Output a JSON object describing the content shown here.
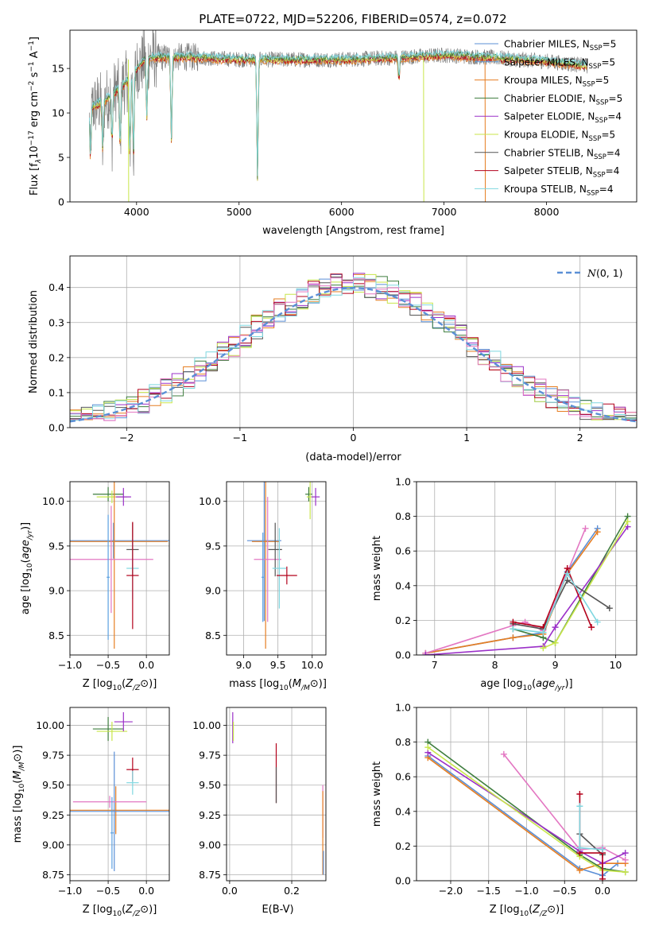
{
  "title": "PLATE=0722, MJD=52206, FIBERID=0574, z=0.072",
  "colors": {
    "chabrier_miles": "#5B8FD6",
    "salpeter_miles": "#5BA0E0",
    "kroupa_miles": "#E67E22",
    "chabrier_elodie": "#3E7D3E",
    "salpeter_elodie": "#9B30C8",
    "kroupa_elodie": "#C8E64A",
    "chabrier_stelib": "#555555",
    "salpeter_stelib": "#B3001B",
    "kroupa_stelib": "#7FD7E0",
    "pink": "#E377C2",
    "gaussian": "#5B8FD6",
    "data": "#808080"
  },
  "legend": [
    {
      "prefix": "Chabrier MILES, N",
      "n": "5",
      "key": "chabrier_miles"
    },
    {
      "prefix": "Salpeter MILES, N",
      "n": "5",
      "key": "salpeter_miles"
    },
    {
      "prefix": "Kroupa MILES, N",
      "n": "5",
      "key": "kroupa_miles"
    },
    {
      "prefix": "Chabrier ELODIE, N",
      "n": "5",
      "key": "chabrier_elodie"
    },
    {
      "prefix": "Salpeter ELODIE, N",
      "n": "4",
      "key": "salpeter_elodie"
    },
    {
      "prefix": "Kroupa ELODIE, N",
      "n": "5",
      "key": "kroupa_elodie"
    },
    {
      "prefix": "Chabrier STELIB, N",
      "n": "4",
      "key": "chabrier_stelib"
    },
    {
      "prefix": "Salpeter STELIB, N",
      "n": "4",
      "key": "salpeter_stelib"
    },
    {
      "prefix": "Kroupa STELIB, N",
      "n": "4",
      "key": "kroupa_stelib"
    }
  ],
  "legend_sub": "SSP",
  "legend_eq": "=",
  "chart_data": [
    {
      "id": "spectrum",
      "type": "line",
      "xlabel": "wavelength [Angstrom, rest frame]",
      "ylabel": "Flux [f",
      "xlim": [
        3350,
        8880
      ],
      "ylim": [
        0,
        19.3
      ],
      "xticks": [
        4000,
        5000,
        6000,
        7000,
        8000
      ],
      "yticks": [
        0,
        5,
        10,
        15
      ],
      "data_range": [
        3540,
        8400
      ],
      "continuum": [
        [
          3540,
          10.5
        ],
        [
          3700,
          11.5
        ],
        [
          3900,
          13.5
        ],
        [
          4000,
          15
        ],
        [
          4100,
          16.2
        ],
        [
          4500,
          16.3
        ],
        [
          5000,
          16.0
        ],
        [
          5500,
          16.0
        ],
        [
          6000,
          16.0
        ],
        [
          6500,
          16.2
        ],
        [
          7000,
          16.5
        ],
        [
          7500,
          16.2
        ],
        [
          8000,
          15.8
        ],
        [
          8400,
          15.3
        ]
      ],
      "dips": [
        [
          3550,
          4.5
        ],
        [
          3670,
          4.8
        ],
        [
          3760,
          6.0
        ],
        [
          3840,
          5.0
        ],
        [
          3935,
          4.0
        ],
        [
          3970,
          4.2
        ],
        [
          4100,
          8.5
        ],
        [
          4340,
          6.0
        ],
        [
          5180,
          1.2
        ],
        [
          6560,
          13.5
        ]
      ]
    },
    {
      "id": "residuals",
      "type": "area",
      "xlabel": "(data-model)/error",
      "ylabel": "Normed distribution",
      "xlim": [
        -2.5,
        2.5
      ],
      "ylim": [
        0,
        0.49
      ],
      "xticks": [
        -2,
        -1,
        0,
        1,
        2
      ],
      "yticks": [
        0.0,
        0.1,
        0.2,
        0.3,
        0.4
      ],
      "bin_width": 0.1,
      "legend_label": "(0, 1)",
      "legend_prefix": "N"
    },
    {
      "id": "age_vs_Z",
      "type": "scatter",
      "xlabel": "Z [log",
      "ylabel": "age  [log",
      "xlim": [
        -1.0,
        0.3
      ],
      "ylim": [
        8.28,
        10.22
      ],
      "xticks": [
        -1.0,
        -0.5,
        0.0
      ],
      "yticks": [
        8.5,
        9.0,
        9.5,
        10.0
      ],
      "points": [
        {
          "x": -0.5,
          "y": 10.08,
          "xerr": 0.2,
          "yerr": 0.08,
          "color": "chabrier_elodie"
        },
        {
          "x": -0.45,
          "y": 10.05,
          "xerr": 0.2,
          "yerr": 0.07,
          "color": "kroupa_elodie"
        },
        {
          "x": -0.3,
          "y": 10.05,
          "xerr": 0.1,
          "yerr": 0.1,
          "color": "salpeter_elodie"
        },
        {
          "x": -0.43,
          "y": 9.56,
          "xerr": 0.75,
          "yerr": 0.2,
          "color": "chabrier_miles"
        },
        {
          "x": -0.42,
          "y": 9.55,
          "xerr": 0.7,
          "yerr": 1.2,
          "color": "kroupa_miles"
        },
        {
          "x": -0.46,
          "y": 9.35,
          "xerr": 0.55,
          "yerr": 0.6,
          "color": "pink"
        },
        {
          "x": -0.18,
          "y": 9.46,
          "xerr": 0.08,
          "yerr": 0.3,
          "color": "chabrier_stelib"
        },
        {
          "x": -0.18,
          "y": 9.25,
          "xerr": 0.08,
          "yerr": 0.35,
          "color": "kroupa_stelib"
        },
        {
          "x": -0.18,
          "y": 9.17,
          "xerr": 0.08,
          "yerr": 0.6,
          "color": "salpeter_stelib"
        },
        {
          "x": -0.5,
          "y": 9.15,
          "xerr": 0.02,
          "yerr": 0.7,
          "color": "salpeter_miles"
        }
      ]
    },
    {
      "id": "age_vs_mass",
      "type": "scatter",
      "xlabel": "mass [log",
      "ylabel": "",
      "xlim": [
        8.75,
        10.2
      ],
      "ylim": [
        8.28,
        10.22
      ],
      "xticks": [
        9.0,
        9.5,
        10.0
      ],
      "yticks": [
        8.5,
        9.0,
        9.5,
        10.0
      ],
      "points": [
        {
          "x": 9.95,
          "y": 10.08,
          "xerr": 0.05,
          "yerr": 0.08,
          "color": "chabrier_elodie"
        },
        {
          "x": 9.97,
          "y": 10.05,
          "xerr": 0.05,
          "yerr": 0.25,
          "color": "kroupa_elodie"
        },
        {
          "x": 10.05,
          "y": 10.05,
          "xerr": 0.06,
          "yerr": 0.1,
          "color": "salpeter_elodie"
        },
        {
          "x": 9.3,
          "y": 9.56,
          "xerr": 0.25,
          "yerr": 0.9,
          "color": "chabrier_miles"
        },
        {
          "x": 9.32,
          "y": 9.55,
          "xerr": 0.2,
          "yerr": 1.2,
          "color": "kroupa_miles"
        },
        {
          "x": 9.35,
          "y": 9.35,
          "xerr": 0.2,
          "yerr": 0.7,
          "color": "pink"
        },
        {
          "x": 9.46,
          "y": 9.46,
          "xerr": 0.1,
          "yerr": 0.3,
          "color": "chabrier_stelib"
        },
        {
          "x": 9.52,
          "y": 9.25,
          "xerr": 0.1,
          "yerr": 0.45,
          "color": "kroupa_stelib"
        },
        {
          "x": 9.63,
          "y": 9.17,
          "xerr": 0.15,
          "yerr": 0.1,
          "color": "salpeter_stelib"
        },
        {
          "x": 9.28,
          "y": 9.15,
          "xerr": 0.02,
          "yerr": 0.5,
          "color": "salpeter_miles"
        }
      ]
    },
    {
      "id": "weight_vs_age",
      "type": "line",
      "xlabel": "age  [log",
      "ylabel": "mass weight",
      "xlim": [
        6.7,
        10.35
      ],
      "ylim": [
        0,
        1.0
      ],
      "xticks": [
        7,
        8,
        9,
        10
      ],
      "yticks": [
        0.0,
        0.2,
        0.4,
        0.6,
        0.8,
        1.0
      ],
      "series": [
        {
          "color": "chabrier_miles",
          "x": [
            6.85,
            8.3,
            8.8,
            9.2,
            9.7
          ],
          "y": [
            0.01,
            0.1,
            0.13,
            0.48,
            0.73
          ]
        },
        {
          "color": "kroupa_miles",
          "x": [
            6.85,
            8.3,
            8.8,
            9.2,
            9.7
          ],
          "y": [
            0.01,
            0.1,
            0.12,
            0.47,
            0.71
          ]
        },
        {
          "color": "pink",
          "x": [
            6.85,
            8.3,
            8.5,
            8.8,
            9.5
          ],
          "y": [
            0.01,
            0.17,
            0.19,
            0.14,
            0.73
          ]
        },
        {
          "color": "chabrier_elodie",
          "x": [
            8.3,
            8.8,
            9.0,
            10.2
          ],
          "y": [
            0.15,
            0.1,
            0.07,
            0.8
          ]
        },
        {
          "color": "salpeter_elodie",
          "x": [
            6.85,
            8.8,
            9.0,
            10.2
          ],
          "y": [
            0.0,
            0.05,
            0.16,
            0.74
          ]
        },
        {
          "color": "kroupa_elodie",
          "x": [
            8.8,
            9.0,
            10.2
          ],
          "y": [
            0.04,
            0.07,
            0.77
          ]
        },
        {
          "color": "chabrier_stelib",
          "x": [
            8.3,
            8.8,
            9.2,
            9.9
          ],
          "y": [
            0.18,
            0.15,
            0.43,
            0.27
          ]
        },
        {
          "color": "salpeter_stelib",
          "x": [
            8.3,
            8.8,
            9.2,
            9.6
          ],
          "y": [
            0.19,
            0.16,
            0.5,
            0.16
          ]
        },
        {
          "color": "kroupa_stelib",
          "x": [
            8.3,
            8.8,
            9.2,
            9.7
          ],
          "y": [
            0.15,
            0.13,
            0.47,
            0.19
          ]
        }
      ]
    },
    {
      "id": "mass_vs_Z",
      "type": "scatter",
      "xlabel": "Z [log",
      "ylabel": "mass [log",
      "xlim": [
        -1.0,
        0.3
      ],
      "ylim": [
        8.7,
        10.15
      ],
      "xticks": [
        -1.0,
        -0.5,
        0.0
      ],
      "yticks": [
        8.75,
        9.0,
        9.25,
        9.5,
        9.75,
        10.0
      ],
      "points": [
        {
          "x": -0.5,
          "y": 9.97,
          "xerr": 0.2,
          "yerr": 0.1,
          "color": "chabrier_elodie"
        },
        {
          "x": -0.45,
          "y": 9.95,
          "xerr": 0.2,
          "yerr": 0.08,
          "color": "kroupa_elodie"
        },
        {
          "x": -0.3,
          "y": 10.03,
          "xerr": 0.12,
          "yerr": 0.08,
          "color": "salpeter_elodie"
        },
        {
          "x": -0.18,
          "y": 9.63,
          "xerr": 0.08,
          "yerr": 0.1,
          "color": "salpeter_stelib"
        },
        {
          "x": -0.18,
          "y": 9.52,
          "xerr": 0.08,
          "yerr": 0.1,
          "color": "kroupa_stelib"
        },
        {
          "x": -0.4,
          "y": 9.29,
          "xerr": 0.7,
          "yerr": 0.2,
          "color": "kroupa_miles"
        },
        {
          "x": -0.42,
          "y": 9.28,
          "xerr": 0.72,
          "yerr": 0.5,
          "color": "chabrier_miles"
        },
        {
          "x": -0.48,
          "y": 9.36,
          "xerr": 0.48,
          "yerr": 0.05,
          "color": "pink"
        },
        {
          "x": -0.45,
          "y": 9.1,
          "xerr": 0.02,
          "yerr": 0.3,
          "color": "salpeter_miles"
        }
      ]
    },
    {
      "id": "mass_vs_ebv",
      "type": "scatter",
      "xlabel": "E(B-V)",
      "ylabel": "",
      "xlim": [
        -0.01,
        0.31
      ],
      "ylim": [
        8.7,
        10.15
      ],
      "xticks": [
        0.0,
        0.2
      ],
      "yticks": [
        8.75,
        9.0,
        9.25,
        9.5,
        9.75,
        10.0
      ],
      "points": [
        {
          "x": 0.01,
          "y": 9.98,
          "xerr": 0,
          "yerr": 0.13,
          "color": "salpeter_elodie"
        },
        {
          "x": 0.012,
          "y": 9.95,
          "xerr": 0,
          "yerr": 0.08,
          "color": "kroupa_elodie"
        },
        {
          "x": 0.15,
          "y": 9.6,
          "xerr": 0,
          "yerr": 0.25,
          "color": "salpeter_stelib"
        },
        {
          "x": 0.15,
          "y": 9.5,
          "xerr": 0,
          "yerr": 0.15,
          "color": "chabrier_stelib"
        },
        {
          "x": 0.3,
          "y": 9.28,
          "xerr": 0,
          "yerr": 0.22,
          "color": "pink"
        },
        {
          "x": 0.3,
          "y": 9.1,
          "xerr": 0,
          "yerr": 0.35,
          "color": "kroupa_miles"
        },
        {
          "x": 0.302,
          "y": 8.85,
          "xerr": 0,
          "yerr": 0.1,
          "color": "chabrier_miles"
        }
      ]
    },
    {
      "id": "weight_vs_Z",
      "type": "line",
      "xlabel": "Z [log",
      "ylabel": "mass weight",
      "xlim": [
        -2.45,
        0.45
      ],
      "ylim": [
        0,
        1.0
      ],
      "xticks": [
        -2.0,
        -1.5,
        -1.0,
        -0.5,
        0.0
      ],
      "yticks": [
        0.0,
        0.2,
        0.4,
        0.6,
        0.8,
        1.0
      ],
      "series": [
        {
          "color": "chabrier_miles",
          "x": [
            -2.3,
            -0.3,
            0.0,
            0.2
          ],
          "y": [
            0.72,
            0.07,
            0.03,
            0.1
          ]
        },
        {
          "color": "kroupa_miles",
          "x": [
            -2.3,
            -0.3,
            0.0,
            0.3
          ],
          "y": [
            0.71,
            0.06,
            0.1,
            0.1
          ]
        },
        {
          "color": "pink",
          "x": [
            -1.3,
            -0.3,
            0.0,
            0.3
          ],
          "y": [
            0.73,
            0.18,
            0.19,
            0.12
          ]
        },
        {
          "color": "chabrier_elodie",
          "x": [
            -2.3,
            -0.3,
            0.0,
            0.3
          ],
          "y": [
            0.8,
            0.15,
            0.07,
            0.05
          ]
        },
        {
          "color": "salpeter_elodie",
          "x": [
            -2.3,
            -0.3,
            0.0,
            0.3
          ],
          "y": [
            0.74,
            0.17,
            0.1,
            0.16
          ]
        },
        {
          "color": "kroupa_elodie",
          "x": [
            -2.3,
            -0.3,
            0.0,
            0.3
          ],
          "y": [
            0.77,
            0.14,
            0.06,
            0.05
          ]
        },
        {
          "color": "chabrier_stelib",
          "x": [
            -0.3,
            0.0
          ],
          "y": [
            0.27,
            0.15
          ]
        },
        {
          "color": "salpeter_stelib",
          "x": [
            -0.3,
            -0.3,
            0.0,
            0.0
          ],
          "y": [
            0.5,
            0.16,
            0.16,
            0.01
          ]
        },
        {
          "color": "kroupa_stelib",
          "x": [
            -0.3,
            -0.3,
            0.0
          ],
          "y": [
            0.43,
            0.19,
            0.18
          ]
        }
      ]
    }
  ]
}
